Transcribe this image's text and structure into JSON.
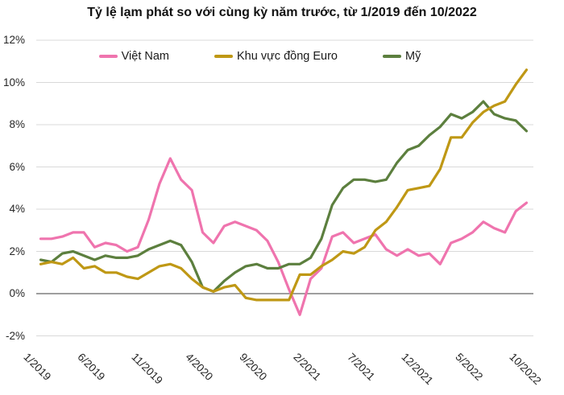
{
  "chart_data": {
    "type": "line",
    "title": "Tỷ lệ lạm phát so với cùng kỳ năm trước, từ 1/2019 đến 10/2022",
    "x": [
      "1/2019",
      "2/2019",
      "3/2019",
      "4/2019",
      "5/2019",
      "6/2019",
      "7/2019",
      "8/2019",
      "9/2019",
      "10/2019",
      "11/2019",
      "12/2019",
      "1/2020",
      "2/2020",
      "3/2020",
      "4/2020",
      "5/2020",
      "6/2020",
      "7/2020",
      "8/2020",
      "9/2020",
      "10/2020",
      "11/2020",
      "12/2020",
      "1/2021",
      "2/2021",
      "3/2021",
      "4/2021",
      "5/2021",
      "6/2021",
      "7/2021",
      "8/2021",
      "9/2021",
      "10/2021",
      "11/2021",
      "12/2021",
      "1/2022",
      "2/2022",
      "3/2022",
      "4/2022",
      "5/2022",
      "6/2022",
      "7/2022",
      "8/2022",
      "9/2022",
      "10/2022"
    ],
    "x_tick_indices": [
      0,
      5,
      10,
      15,
      20,
      25,
      30,
      35,
      40,
      45
    ],
    "y_axis": {
      "tick_labels": [
        "12%",
        "10%",
        "8%",
        "6%",
        "4%",
        "2%",
        "0%",
        "-2%"
      ],
      "tick_values": [
        12,
        10,
        8,
        6,
        4,
        2,
        0,
        -2
      ],
      "ylim": [
        -2,
        12
      ]
    },
    "grid": true,
    "legend_position": "top",
    "gridline_color": "#d9d9d9",
    "zero_line_color": "#7f7f7f",
    "series": [
      {
        "id": "vietnam",
        "name": "Việt Nam",
        "color": "#ef74ae",
        "values": [
          2.6,
          2.6,
          2.7,
          2.9,
          2.9,
          2.2,
          2.4,
          2.3,
          2.0,
          2.2,
          3.5,
          5.2,
          6.4,
          5.4,
          4.9,
          2.9,
          2.4,
          3.2,
          3.4,
          3.2,
          3.0,
          2.5,
          1.5,
          0.2,
          -1.0,
          0.7,
          1.2,
          2.7,
          2.9,
          2.4,
          2.6,
          2.8,
          2.1,
          1.8,
          2.1,
          1.8,
          1.9,
          1.4,
          2.4,
          2.6,
          2.9,
          3.4,
          3.1,
          2.9,
          3.9,
          4.3
        ]
      },
      {
        "id": "euro",
        "name": "Khu vực đồng Euro",
        "color": "#bf9815",
        "values": [
          1.4,
          1.5,
          1.4,
          1.7,
          1.2,
          1.3,
          1.0,
          1.0,
          0.8,
          0.7,
          1.0,
          1.3,
          1.4,
          1.2,
          0.7,
          0.3,
          0.1,
          0.3,
          0.4,
          -0.2,
          -0.3,
          -0.3,
          -0.3,
          -0.3,
          0.9,
          0.9,
          1.3,
          1.6,
          2.0,
          1.9,
          2.2,
          3.0,
          3.4,
          4.1,
          4.9,
          5.0,
          5.1,
          5.9,
          7.4,
          7.4,
          8.1,
          8.6,
          8.9,
          9.1,
          9.9,
          10.6
        ]
      },
      {
        "id": "us",
        "name": "Mỹ",
        "color": "#5c7f3e",
        "values": [
          1.6,
          1.5,
          1.9,
          2.0,
          1.8,
          1.6,
          1.8,
          1.7,
          1.7,
          1.8,
          2.1,
          2.3,
          2.5,
          2.3,
          1.5,
          0.3,
          0.1,
          0.6,
          1.0,
          1.3,
          1.4,
          1.2,
          1.2,
          1.4,
          1.4,
          1.7,
          2.6,
          4.2,
          5.0,
          5.4,
          5.4,
          5.3,
          5.4,
          6.2,
          6.8,
          7.0,
          7.5,
          7.9,
          8.5,
          8.3,
          8.6,
          9.1,
          8.5,
          8.3,
          8.2,
          7.7
        ]
      }
    ],
    "draw_order": [
      "vietnam",
      "us",
      "euro"
    ]
  }
}
